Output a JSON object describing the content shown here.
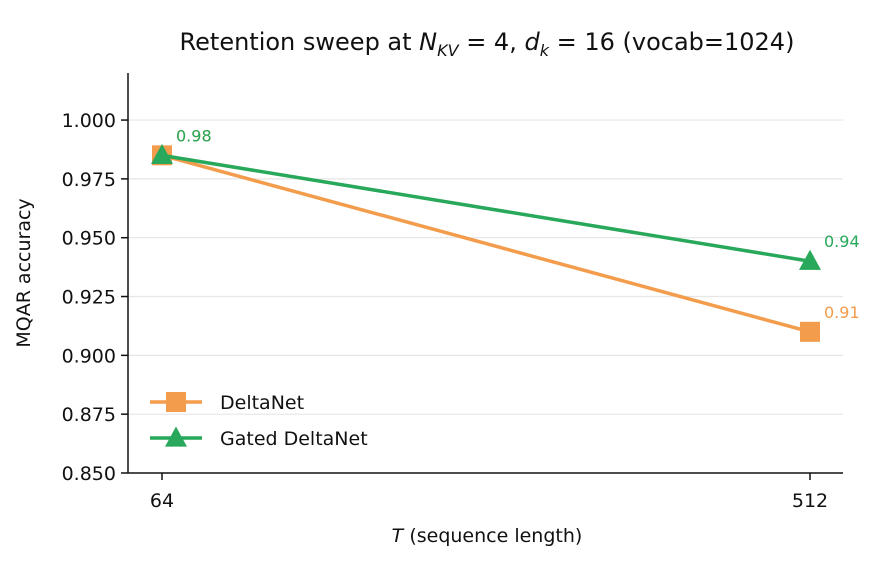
{
  "chart_data": {
    "type": "line",
    "title_parts": {
      "prefix": "Retention sweep at ",
      "nkv_sym": "N",
      "nkv_sub": "KV",
      "nkv_val": " = 4, ",
      "dk_sym": "d",
      "dk_sub": "k",
      "dk_val": " = 16 (vocab=1024)"
    },
    "xlabel_parts": {
      "var": "T",
      "rest": " (sequence length)"
    },
    "ylabel": "MQAR accuracy",
    "categories": [
      "64",
      "512"
    ],
    "ylim": [
      0.85,
      1.02
    ],
    "yticks": [
      "0.850",
      "0.875",
      "0.900",
      "0.925",
      "0.950",
      "0.975",
      "1.000"
    ],
    "ytick_values": [
      0.85,
      0.875,
      0.9,
      0.925,
      0.95,
      0.975,
      1.0
    ],
    "grid": "horizontal",
    "legend_position": "lower-left",
    "series": [
      {
        "name": "DeltaNet",
        "color": "#f39c4c",
        "marker": "square",
        "values": [
          0.985,
          0.91
        ],
        "labels": [
          "0.98",
          "0.91"
        ]
      },
      {
        "name": "Gated DeltaNet",
        "color": "#27a85a",
        "marker": "triangle",
        "values": [
          0.985,
          0.94
        ],
        "labels": [
          "0.98",
          "0.94"
        ]
      }
    ]
  }
}
